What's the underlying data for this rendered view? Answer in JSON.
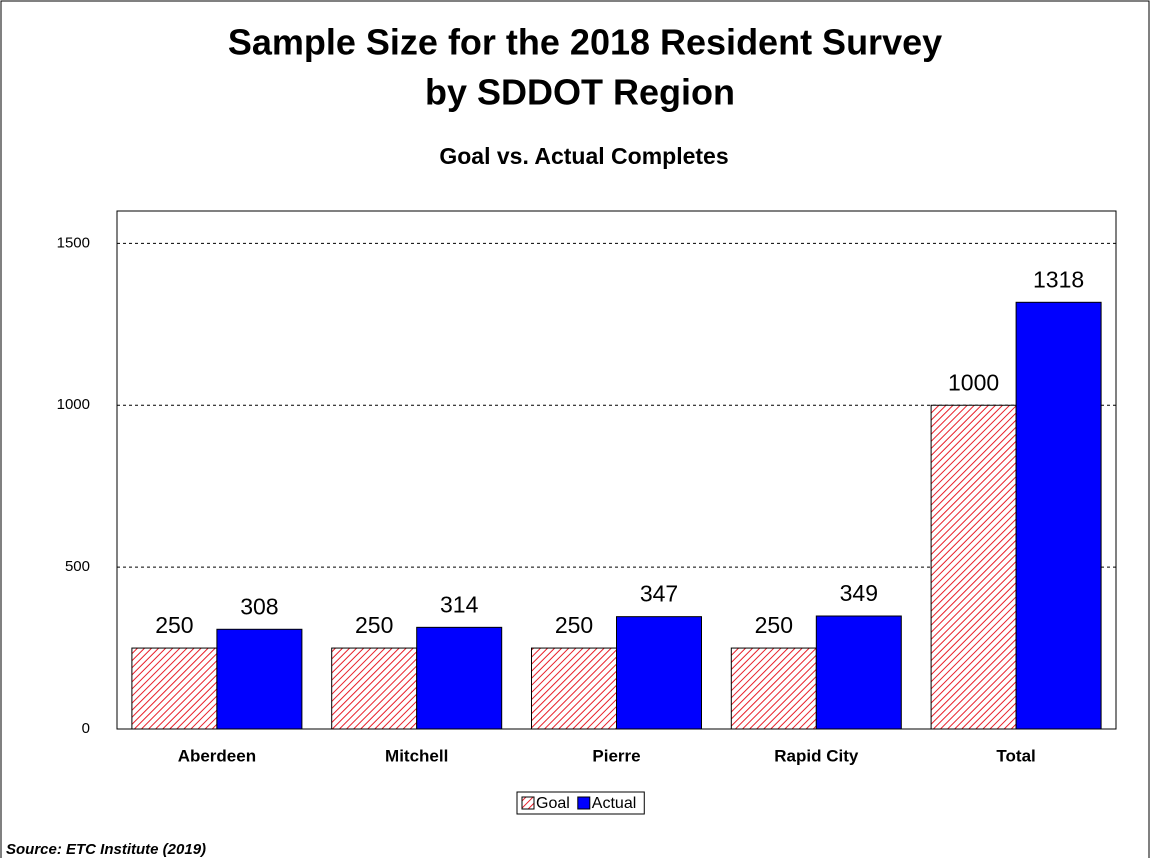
{
  "chart_data": {
    "type": "bar",
    "title": [
      "Sample Size for the 2018 Resident Survey",
      "by SDDOT Region"
    ],
    "subtitle": "Goal vs. Actual Completes",
    "categories": [
      "Aberdeen",
      "Mitchell",
      "Pierre",
      "Rapid City",
      "Total"
    ],
    "series": [
      {
        "name": "Goal",
        "color": "#e8202a",
        "pattern": "hatch",
        "values": [
          250,
          250,
          250,
          250,
          1000
        ]
      },
      {
        "name": "Actual",
        "color": "#0000ff",
        "values": [
          308,
          314,
          347,
          349,
          1318
        ]
      }
    ],
    "ylim": [
      0,
      1600
    ],
    "yticks": [
      0,
      500,
      1000,
      1500
    ],
    "grid": true,
    "legend": "bottom",
    "source": "Source:  ETC Institute (2019)"
  }
}
